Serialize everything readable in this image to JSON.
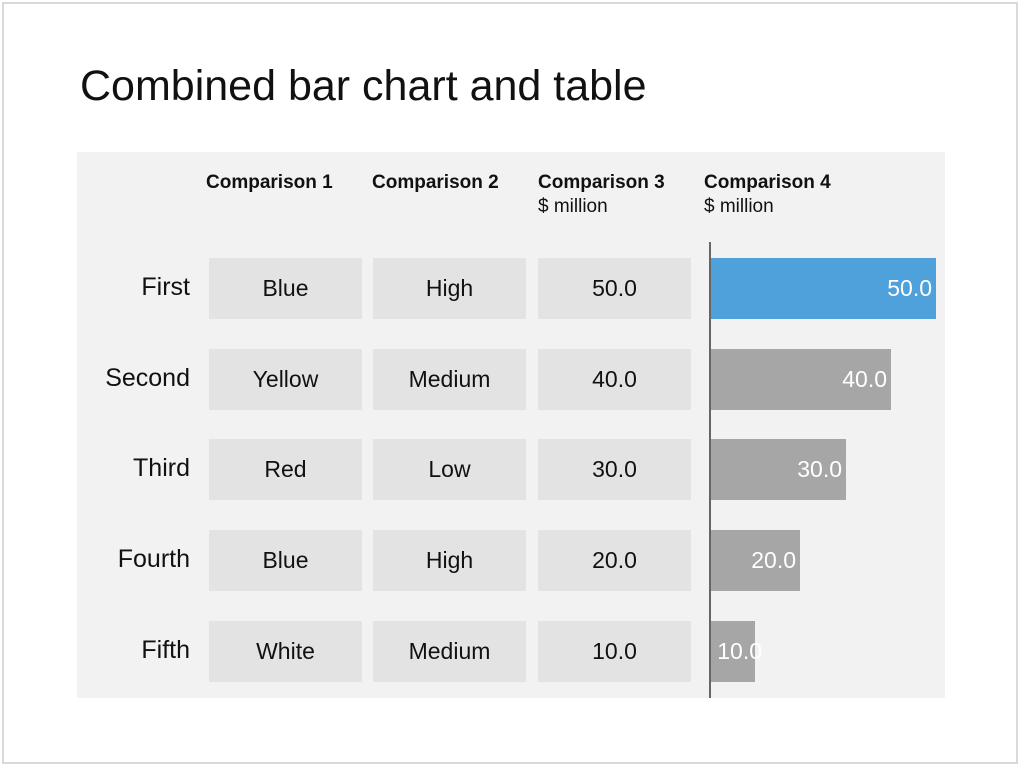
{
  "title": "Combined bar chart and table",
  "columns": [
    {
      "header": "Comparison 1",
      "unit": ""
    },
    {
      "header": "Comparison 2",
      "unit": ""
    },
    {
      "header": "Comparison 3",
      "unit": "$ million"
    },
    {
      "header": "Comparison 4",
      "unit": "$ million"
    }
  ],
  "rows": [
    {
      "label": "First",
      "c1": "Blue",
      "c2": "High",
      "c3": "50.0"
    },
    {
      "label": "Second",
      "c1": "Yellow",
      "c2": "Medium",
      "c3": "40.0"
    },
    {
      "label": "Third",
      "c1": "Red",
      "c2": "Low",
      "c3": "30.0"
    },
    {
      "label": "Fourth",
      "c1": "Blue",
      "c2": "High",
      "c3": "20.0"
    },
    {
      "label": "Fifth",
      "c1": "White",
      "c2": "Medium",
      "c3": "10.0"
    }
  ],
  "colors": {
    "highlight": "#4fa1dc",
    "bar": "#a6a6a6",
    "cell": "#e3e3e3",
    "panel": "#f2f2f2"
  },
  "chart_data": {
    "type": "bar",
    "orientation": "horizontal",
    "categories": [
      "First",
      "Second",
      "Third",
      "Fourth",
      "Fifth"
    ],
    "values": [
      50.0,
      40.0,
      30.0,
      20.0,
      10.0
    ],
    "value_labels": [
      "50.0",
      "40.0",
      "30.0",
      "20.0",
      "10.0"
    ],
    "highlighted_category": "First",
    "title": "Combined bar chart and table",
    "xlabel": "Comparison 4",
    "unit": "$ million",
    "xlim": [
      0,
      50
    ]
  }
}
